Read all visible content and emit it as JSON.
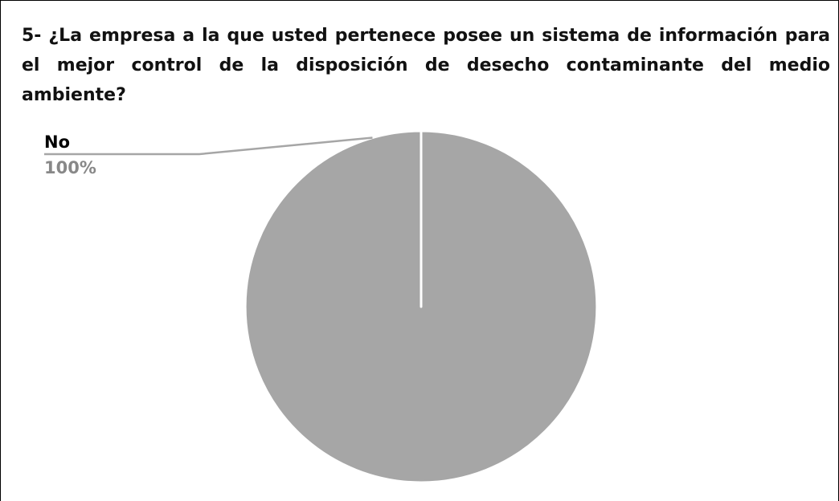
{
  "chart_data": {
    "type": "pie",
    "title": "5- ¿La empresa a la que usted pertenece posee un sistema de información para el mejor control de la disposición de desecho contaminante del medio ambiente?",
    "categories": [
      "No"
    ],
    "values": [
      100
    ],
    "value_labels": [
      "100%"
    ],
    "colors": [
      "#a6a6a6"
    ]
  }
}
